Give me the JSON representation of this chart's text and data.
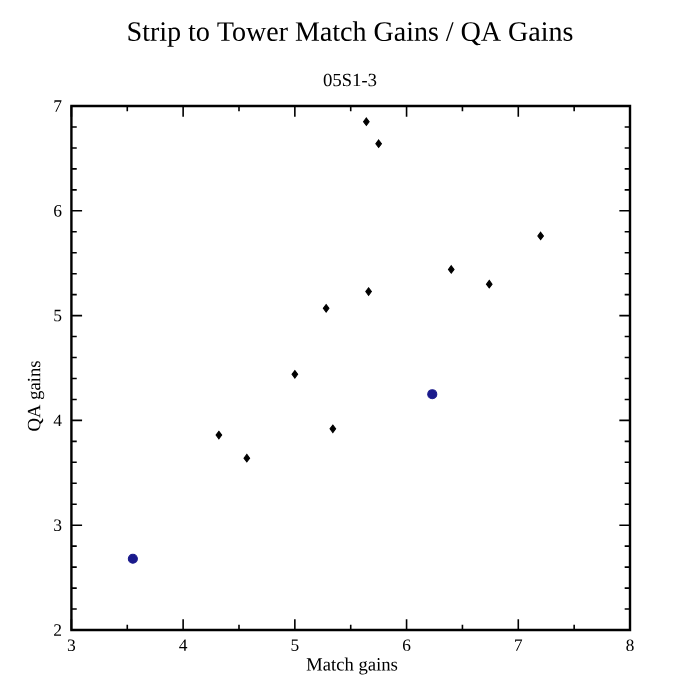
{
  "chart_data": {
    "type": "scatter",
    "title": "Strip to Tower Match Gains / QA Gains",
    "subtitle": "05S1-3",
    "xlabel": "Match gains",
    "ylabel": "QA gains",
    "xlim": [
      3,
      8
    ],
    "xticks": [
      3,
      4,
      5,
      6,
      7,
      8
    ],
    "ylim": [
      2,
      7
    ],
    "yticks": [
      2,
      3,
      4,
      5,
      6,
      7
    ],
    "grid": false,
    "marker": "diamond",
    "series": [
      {
        "color": "#000000",
        "x": [
          5.64,
          5.75,
          7.2,
          6.4,
          6.74,
          5.28,
          5.66,
          5.0,
          4.32,
          4.57,
          5.34
        ],
        "values": [
          6.85,
          6.64,
          5.76,
          5.44,
          5.3,
          5.07,
          5.23,
          4.44,
          3.86,
          3.64,
          3.92
        ]
      },
      {
        "color": "#1a1a8c",
        "marker": "circle",
        "x": [
          6.23,
          3.55
        ],
        "values": [
          4.25,
          2.68
        ]
      }
    ]
  }
}
